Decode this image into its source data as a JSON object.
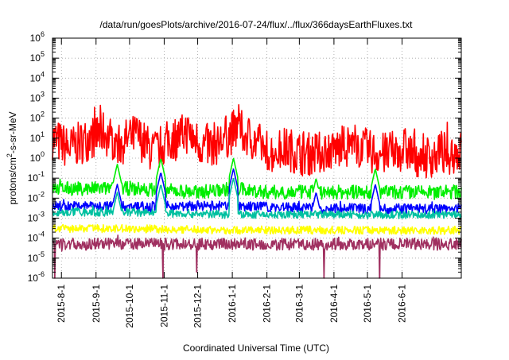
{
  "chart_data": {
    "type": "line",
    "title": "/data/run/goesPlots/archive/2016-07-24/flux/../flux/366daysEarthFluxes.txt",
    "xlabel": "Coordinated Universal Time (UTC)",
    "ylabel": {
      "prefix": "protons/cm",
      "sup": "2",
      "suffix": "-s-sr-MeV"
    },
    "yscale": "log",
    "ylim": [
      1e-06,
      1000000.0
    ],
    "xlim": [
      "2015-07-24",
      "2016-07-24"
    ],
    "grid": true,
    "legend": "none",
    "y_ticks": [
      {
        "base": "10",
        "exp": "-6"
      },
      {
        "base": "10",
        "exp": "-5"
      },
      {
        "base": "10",
        "exp": "-4"
      },
      {
        "base": "10",
        "exp": "-3"
      },
      {
        "base": "10",
        "exp": "-2"
      },
      {
        "base": "10",
        "exp": "-1"
      },
      {
        "base": "10",
        "exp": "0"
      },
      {
        "base": "10",
        "exp": "1"
      },
      {
        "base": "10",
        "exp": "2"
      },
      {
        "base": "10",
        "exp": "3"
      },
      {
        "base": "10",
        "exp": "4"
      },
      {
        "base": "10",
        "exp": "5"
      },
      {
        "base": "10",
        "exp": "6"
      }
    ],
    "x_ticks": [
      "2015-8-1",
      "2015-9-1",
      "2015-10-1",
      "2015-11-1",
      "2015-12-1",
      "2016-1-1",
      "2016-2-1",
      "2016-3-1",
      "2016-4-1",
      "2016-5-1",
      "2016-6-1"
    ],
    "x_tick_dates": [
      "2015-08-01",
      "2015-09-01",
      "2015-10-01",
      "2015-11-01",
      "2015-12-01",
      "2016-01-01",
      "2016-02-01",
      "2016-03-01",
      "2016-04-01",
      "2016-05-01",
      "2016-06-01"
    ],
    "series": [
      {
        "color": "#ff0000",
        "x": [
          "2015-07-24",
          "2015-08-08",
          "2015-08-23",
          "2015-09-07",
          "2015-09-22",
          "2015-10-07",
          "2015-10-22",
          "2015-11-06",
          "2015-11-21",
          "2015-12-06",
          "2015-12-21",
          "2016-01-05",
          "2016-01-20",
          "2016-02-04",
          "2016-02-19",
          "2016-03-05",
          "2016-03-20",
          "2016-04-04",
          "2016-04-19",
          "2016-05-04",
          "2016-05-19",
          "2016-06-03",
          "2016-06-18",
          "2016-07-03",
          "2016-07-18",
          "2016-07-24"
        ],
        "y": [
          10,
          3,
          8,
          20,
          5,
          15,
          2,
          8,
          20,
          4,
          6,
          30,
          8,
          2,
          3,
          1.5,
          2,
          3,
          5,
          2,
          1.5,
          3,
          1,
          1.5,
          2,
          2
        ],
        "noise_decades": 1.1
      },
      {
        "color": "#00ee00",
        "x": [
          "2015-07-24",
          "2015-09-01",
          "2015-10-01",
          "2015-11-01",
          "2015-12-01",
          "2016-01-01",
          "2016-02-01",
          "2016-03-01",
          "2016-04-01",
          "2016-05-01",
          "2016-06-01",
          "2016-07-24"
        ],
        "y": [
          0.03,
          0.03,
          0.03,
          0.025,
          0.02,
          0.03,
          0.02,
          0.02,
          0.02,
          0.02,
          0.02,
          0.02
        ],
        "noise_decades": 0.35
      },
      {
        "color": "#0000ff",
        "x": [
          "2015-07-24",
          "2015-10-01",
          "2016-01-01",
          "2016-04-01",
          "2016-07-24"
        ],
        "y": [
          0.004,
          0.004,
          0.004,
          0.003,
          0.003
        ],
        "noise_decades": 0.25
      },
      {
        "color": "#00c0a0",
        "x": [
          "2015-07-24",
          "2015-10-01",
          "2016-01-01",
          "2016-04-01",
          "2016-07-24"
        ],
        "y": [
          0.002,
          0.002,
          0.0015,
          0.0015,
          0.0015
        ],
        "noise_decades": 0.2
      },
      {
        "color": "#ffff00",
        "x": [
          "2015-07-24",
          "2015-10-01",
          "2016-01-01",
          "2016-04-01",
          "2016-07-24"
        ],
        "y": [
          0.0003,
          0.0003,
          0.00025,
          0.00025,
          0.00025
        ],
        "noise_decades": 0.2
      },
      {
        "color": "#a03060",
        "x": [
          "2015-07-24",
          "2015-10-01",
          "2016-01-01",
          "2016-04-01",
          "2016-07-24"
        ],
        "y": [
          5e-05,
          5e-05,
          5e-05,
          5e-05,
          5e-05
        ],
        "noise_decades": 0.3
      }
    ],
    "events": [
      {
        "date": "2015-09-20",
        "peak": {
          "1": 0.5,
          "2": 0.05,
          "3": 0.02
        }
      },
      {
        "date": "2015-10-29",
        "peak": {
          "1": 1,
          "2": 0.2,
          "3": 0.05
        }
      },
      {
        "date": "2016-01-02",
        "peak": {
          "1": 1,
          "2": 0.3,
          "3": 0.1
        }
      },
      {
        "date": "2016-03-16",
        "peak": {
          "1": 0.1,
          "2": 0.02
        }
      },
      {
        "date": "2016-05-08",
        "peak": {
          "1": 0.3,
          "2": 0.05
        }
      }
    ],
    "dips": [
      {
        "date": "2015-07-26",
        "series": 5,
        "y": 1e-06
      },
      {
        "date": "2015-10-31",
        "series": 5,
        "y": 1e-06
      },
      {
        "date": "2015-11-30",
        "series": 5,
        "y": 2e-06
      },
      {
        "date": "2016-03-23",
        "series": 5,
        "y": 1e-06
      },
      {
        "date": "2016-05-12",
        "series": 5,
        "y": 1e-06
      }
    ]
  }
}
